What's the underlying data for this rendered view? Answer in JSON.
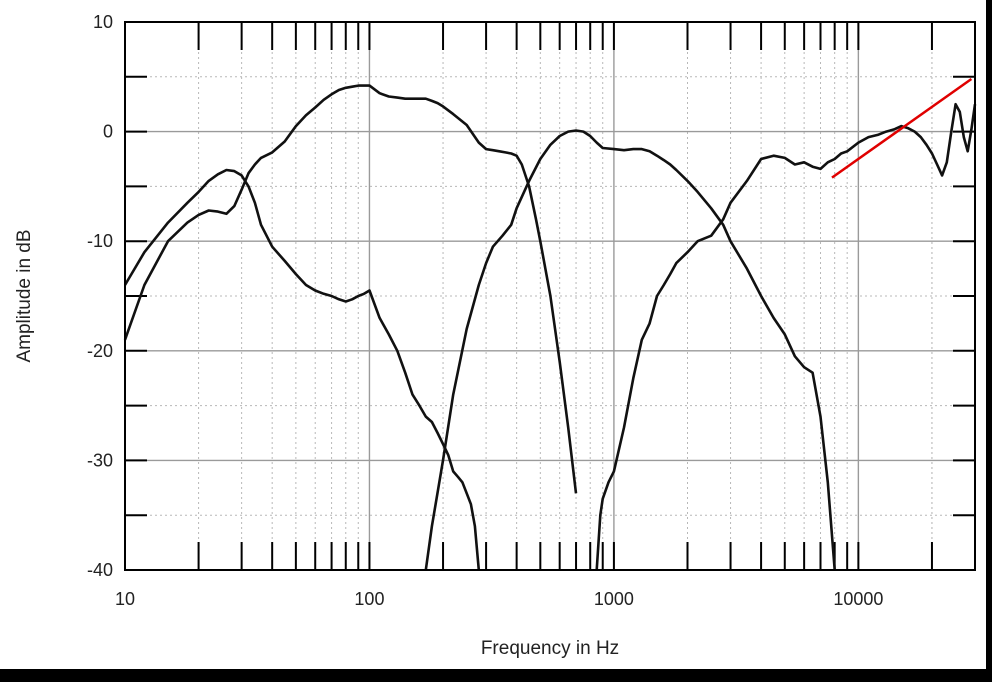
{
  "chart_data": {
    "type": "line",
    "xlabel": "Frequency in Hz",
    "ylabel": "Amplitude in dB",
    "x_scale": "log",
    "xlim": [
      10,
      30000
    ],
    "ylim": [
      -40,
      10
    ],
    "x_ticks": [
      "10",
      "100",
      "1000",
      "10000"
    ],
    "y_ticks": [
      "10",
      "0",
      "-10",
      "-20",
      "-30",
      "-40"
    ],
    "grid": true,
    "series": [
      {
        "x": [
          10,
          12,
          15,
          18,
          20,
          22,
          24,
          26,
          28,
          30,
          32,
          34,
          36,
          40,
          45,
          50,
          55,
          60,
          65,
          70,
          75,
          80,
          85,
          90,
          95,
          100,
          110,
          120,
          130,
          140,
          150,
          160,
          170,
          180,
          190,
          200,
          220,
          250,
          280,
          300,
          320,
          340,
          360,
          380,
          400,
          420,
          450,
          480,
          500,
          550,
          600,
          650,
          700
        ],
        "y": [
          -19,
          -14,
          -10,
          -8.3,
          -7.6,
          -7.2,
          -7.3,
          -7.5,
          -6.8,
          -5.3,
          -3.8,
          -3,
          -2.4,
          -1.9,
          -0.9,
          0.5,
          1.5,
          2.2,
          2.9,
          3.4,
          3.8,
          4,
          4.1,
          4.2,
          4.2,
          4.2,
          3.5,
          3.2,
          3.1,
          3,
          3,
          3,
          3,
          2.8,
          2.6,
          2.3,
          1.6,
          0.6,
          -1,
          -1.6,
          -1.7,
          -1.8,
          -1.9,
          -2,
          -2.2,
          -3,
          -5,
          -8,
          -10,
          -15,
          -21,
          -27,
          -33
        ]
      },
      {
        "x": [
          10,
          12,
          15,
          18,
          20,
          22,
          24,
          26,
          28,
          30,
          32,
          34,
          36,
          40,
          45,
          50,
          55,
          60,
          65,
          70,
          75,
          80,
          85,
          90,
          95,
          100,
          110,
          120,
          130,
          140,
          150,
          160,
          170,
          180,
          190,
          200,
          210,
          220,
          230,
          240,
          250,
          260,
          270,
          280
        ],
        "y": [
          -14,
          -11,
          -8.3,
          -6.5,
          -5.5,
          -4.5,
          -3.9,
          -3.5,
          -3.6,
          -4,
          -5,
          -6.5,
          -8.5,
          -10.5,
          -11.8,
          -13,
          -14,
          -14.5,
          -14.8,
          -15,
          -15.3,
          -15.5,
          -15.3,
          -15,
          -14.8,
          -14.5,
          -17,
          -18.5,
          -20,
          -22,
          -24,
          -25,
          -26,
          -26.5,
          -27.5,
          -28.5,
          -29.5,
          -31,
          -31.5,
          -32,
          -33,
          -34,
          -36,
          -40
        ]
      },
      {
        "x": [
          170,
          180,
          200,
          220,
          250,
          280,
          300,
          320,
          350,
          380,
          400,
          450,
          500,
          550,
          600,
          650,
          700,
          750,
          800,
          850,
          900,
          1000,
          1100,
          1200,
          1300,
          1400,
          1500,
          1600,
          1700,
          1800,
          2000,
          2200,
          2500,
          2800,
          3000,
          3500,
          4000,
          4500,
          5000,
          5500,
          6000,
          6500,
          7000,
          7500,
          8000
        ],
        "y": [
          -40,
          -36,
          -30,
          -24,
          -18,
          -14,
          -12,
          -10.5,
          -9.5,
          -8.5,
          -7,
          -4.5,
          -2.5,
          -1.2,
          -0.4,
          0,
          0.1,
          0,
          -0.4,
          -1,
          -1.5,
          -1.6,
          -1.7,
          -1.6,
          -1.6,
          -1.8,
          -2.2,
          -2.6,
          -3,
          -3.5,
          -4.5,
          -5.5,
          -7,
          -8.5,
          -10,
          -12.5,
          -15,
          -17,
          -18.5,
          -20.5,
          -21.5,
          -22,
          -26,
          -32,
          -40
        ]
      },
      {
        "x": [
          850,
          880,
          900,
          950,
          1000,
          1100,
          1200,
          1300,
          1400,
          1500,
          1600,
          1700,
          1800,
          2000,
          2200,
          2500,
          2800,
          3000,
          3500,
          4000,
          4500,
          5000,
          5500,
          6000,
          6500,
          7000,
          7500,
          8000,
          8500,
          9000,
          10000,
          11000,
          12000,
          13000,
          14000,
          15000,
          16000,
          17000,
          18000,
          19000,
          20000,
          21000,
          22000,
          23000,
          24000,
          25000,
          26000,
          27000,
          28000,
          29000,
          30000
        ],
        "y": [
          -40,
          -35,
          -33.5,
          -32,
          -31,
          -27,
          -22.5,
          -19,
          -17.5,
          -15,
          -14,
          -13,
          -12,
          -11,
          -10,
          -9.5,
          -8,
          -6.5,
          -4.5,
          -2.5,
          -2.2,
          -2.4,
          -3,
          -2.8,
          -3.2,
          -3.4,
          -2.8,
          -2.5,
          -2,
          -1.8,
          -1,
          -0.5,
          -0.3,
          0,
          0.2,
          0.5,
          0.3,
          0,
          -0.5,
          -1.2,
          -2,
          -3,
          -4,
          -2.8,
          0,
          2.5,
          1.8,
          -0.5,
          -1.8,
          0.2,
          2.5
        ]
      }
    ],
    "annotations": [
      {
        "type": "line",
        "color": "#e00000",
        "x1": 7800,
        "y1": -4.2,
        "x2": 29000,
        "y2": 4.8
      }
    ]
  },
  "colors": {
    "curve": "#111111",
    "annotation": "#e00000",
    "grid": "#999999",
    "frame": "#000000"
  }
}
